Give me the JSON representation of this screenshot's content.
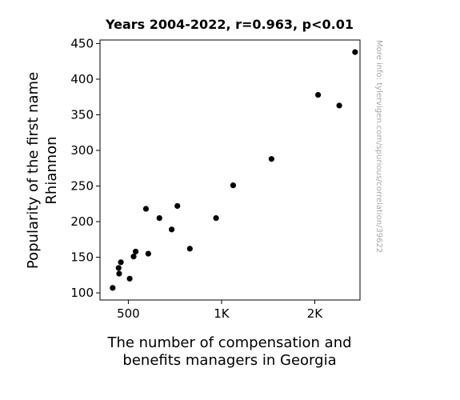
{
  "chart_data": {
    "type": "scatter",
    "title": "Years 2004-2022, r=0.963, p<0.01",
    "xlabel": [
      "The number of compensation and",
      "benefits managers in Georgia"
    ],
    "ylabel": [
      "Popularity of the first name",
      "Rhiannon"
    ],
    "xscale": "log",
    "xlim": [
      405,
      2800
    ],
    "ylim": [
      90,
      455
    ],
    "xticks": [
      {
        "value": 500,
        "label": "500"
      },
      {
        "value": 1000,
        "label": "1K"
      },
      {
        "value": 2000,
        "label": "2K"
      }
    ],
    "yticks": [
      100,
      150,
      200,
      250,
      300,
      350,
      400,
      450
    ],
    "points": [
      {
        "x": 445,
        "y": 107
      },
      {
        "x": 465,
        "y": 135
      },
      {
        "x": 467,
        "y": 127
      },
      {
        "x": 473,
        "y": 143
      },
      {
        "x": 505,
        "y": 120
      },
      {
        "x": 520,
        "y": 151
      },
      {
        "x": 528,
        "y": 158
      },
      {
        "x": 570,
        "y": 218
      },
      {
        "x": 580,
        "y": 155
      },
      {
        "x": 630,
        "y": 205
      },
      {
        "x": 690,
        "y": 189
      },
      {
        "x": 720,
        "y": 222
      },
      {
        "x": 790,
        "y": 162
      },
      {
        "x": 960,
        "y": 205
      },
      {
        "x": 1090,
        "y": 251
      },
      {
        "x": 1450,
        "y": 288
      },
      {
        "x": 2050,
        "y": 378
      },
      {
        "x": 2400,
        "y": 363
      },
      {
        "x": 2700,
        "y": 438
      }
    ],
    "marker_color": "#000000",
    "grid": false,
    "legend": "none"
  },
  "watermark": "More info: tylervigen.com/spurious/correlation/39622"
}
